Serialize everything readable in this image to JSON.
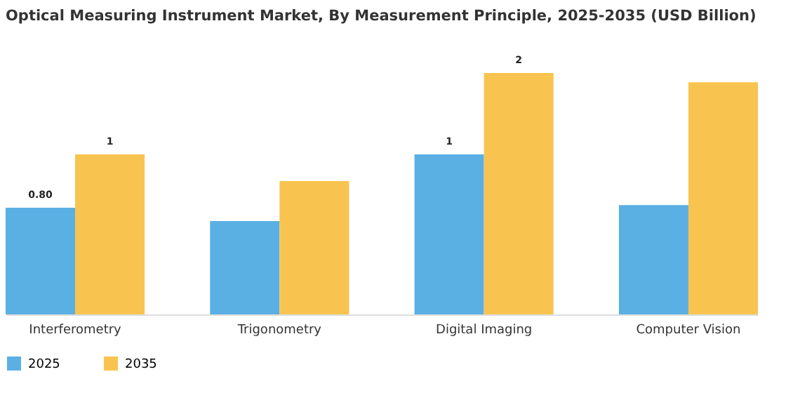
{
  "chart_data": {
    "type": "bar",
    "title": "Optical Measuring Instrument Market, By Measurement Principle, 2025-2035 (USD Billion)",
    "categories": [
      "Interferometry",
      "Trigonometry",
      "Digital Imaging",
      "Computer Vision"
    ],
    "series": [
      {
        "name": "2025",
        "color": "#5aafe3",
        "values": [
          0.8,
          0.7,
          1.2,
          0.82
        ],
        "value_labels": [
          "0.80",
          null,
          "1",
          null
        ]
      },
      {
        "name": "2035",
        "color": "#f8c44f",
        "values": [
          1.2,
          1.0,
          1.81,
          1.74
        ],
        "value_labels": [
          "1",
          null,
          "2",
          null
        ]
      }
    ],
    "legend": "bottom"
  }
}
